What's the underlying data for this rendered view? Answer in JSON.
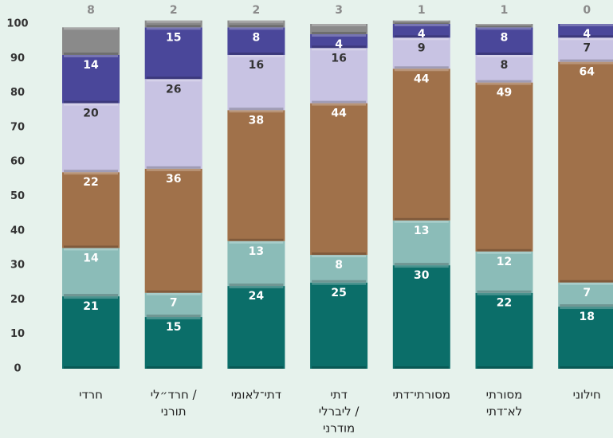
{
  "chart_data": {
    "type": "stacked_bar",
    "categories": [
      [
        "חרדי"
      ],
      [
        "חרד״לי /",
        "תורני"
      ],
      [
        "דתי־לאומי"
      ],
      [
        "דתי",
        "ליברלי /",
        "מודרני"
      ],
      [
        "מסורתי־דתי"
      ],
      [
        "מסורתי",
        "לא־דתי"
      ],
      [
        "חילוני"
      ]
    ],
    "series": [
      {
        "color": "#0b6e69",
        "label_color": "#ffffff",
        "values": [
          21,
          15,
          24,
          25,
          30,
          22,
          18
        ]
      },
      {
        "color": "#8bbcb8",
        "label_color": "#ffffff",
        "values": [
          14,
          7,
          13,
          8,
          13,
          12,
          7
        ]
      },
      {
        "color": "#a0714a",
        "label_color": "#ffffff",
        "values": [
          22,
          36,
          38,
          44,
          44,
          49,
          64
        ]
      },
      {
        "color": "#c8c3e3",
        "label_color": "#333333",
        "values": [
          20,
          26,
          16,
          16,
          9,
          8,
          7
        ]
      },
      {
        "color": "#4a479a",
        "label_color": "#ffffff",
        "values": [
          14,
          15,
          8,
          4,
          4,
          8,
          4
        ]
      },
      {
        "color": "#8a8a8a",
        "label_color": "#8a8a8a",
        "values": [
          8,
          2,
          2,
          3,
          1,
          1,
          0
        ]
      }
    ],
    "ylim": [
      0,
      100
    ],
    "yticks": [
      0,
      10,
      20,
      30,
      40,
      50,
      60,
      70,
      80,
      90,
      100
    ],
    "grid": false
  }
}
